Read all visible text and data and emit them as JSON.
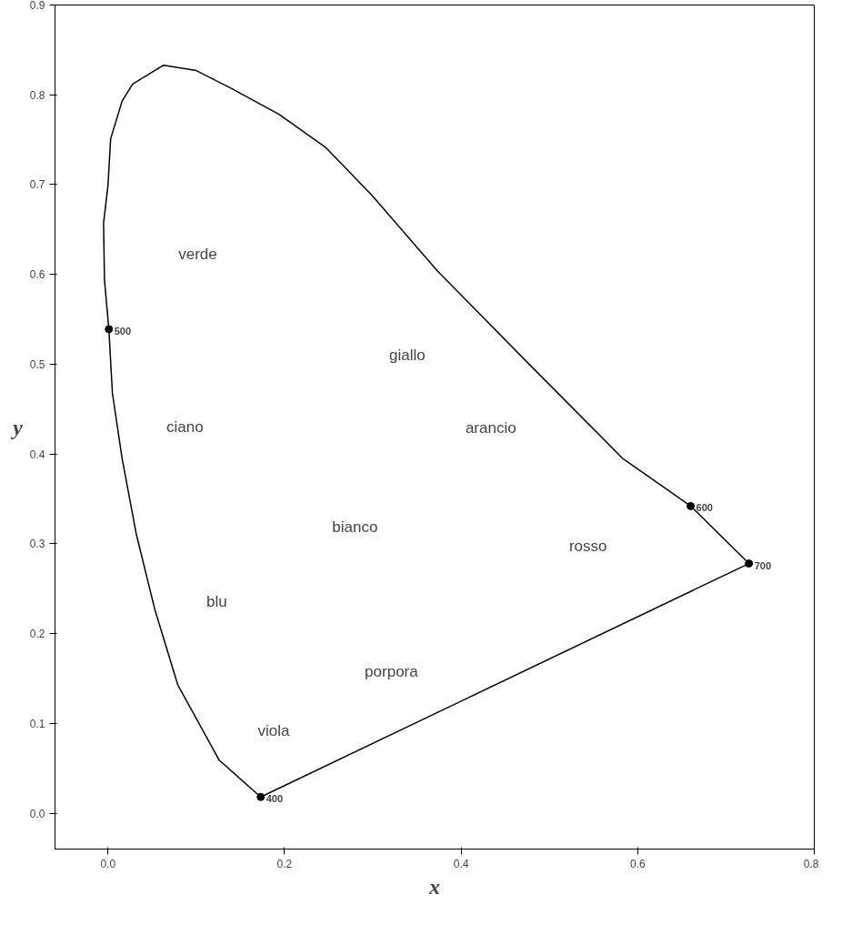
{
  "chart_data": {
    "type": "line",
    "xlabel": "x",
    "ylabel": "y",
    "xlim": [
      -0.06,
      0.8
    ],
    "ylim": [
      -0.04,
      0.9
    ],
    "xticks": [
      {
        "value": 0,
        "label": "0.0"
      },
      0.2,
      0.4,
      0.6,
      0.8
    ],
    "yticks": [
      {
        "value": 0,
        "label": "0.0"
      },
      0.1,
      0.2,
      0.3,
      0.4,
      0.5,
      0.6,
      0.7,
      0.8,
      0.9
    ],
    "grid": false,
    "line_style": "solid",
    "series": [
      {
        "color": "#000000",
        "x": [
          0.173,
          0.126,
          0.079,
          0.053,
          0.032,
          0.016,
          0.005,
          0.001,
          -0.004,
          -0.005,
          0.0,
          0.003,
          0.016,
          0.028,
          0.063,
          0.1,
          0.142,
          0.194,
          0.247,
          0.299,
          0.373,
          0.478,
          0.583,
          0.66,
          0.726
        ],
        "values": [
          0.018,
          0.059,
          0.143,
          0.227,
          0.311,
          0.395,
          0.468,
          0.539,
          0.594,
          0.657,
          0.699,
          0.751,
          0.793,
          0.812,
          0.833,
          0.827,
          0.806,
          0.778,
          0.741,
          0.688,
          0.604,
          0.499,
          0.395,
          0.342,
          0.278
        ]
      },
      {
        "color": "#000000",
        "x": [
          0.173,
          0.726
        ],
        "values": [
          0.018,
          0.278
        ]
      },
      {
        "type": "scatter",
        "color": "#000000",
        "marker": "circle",
        "x": [
          0.173,
          0.001,
          0.66,
          0.726
        ],
        "values": [
          0.018,
          0.539,
          0.342,
          0.278
        ]
      }
    ],
    "annotations": [
      {
        "text": "400",
        "x": 0.173,
        "y": 0.018
      },
      {
        "text": "500",
        "x": 0.001,
        "y": 0.539
      },
      {
        "text": "600",
        "x": 0.66,
        "y": 0.342
      },
      {
        "text": "700",
        "x": 0.726,
        "y": 0.278
      },
      "verde",
      "giallo",
      "ciano",
      "arancio",
      "bianco",
      "rosso",
      "blu",
      "porpora",
      "viola"
    ]
  }
}
